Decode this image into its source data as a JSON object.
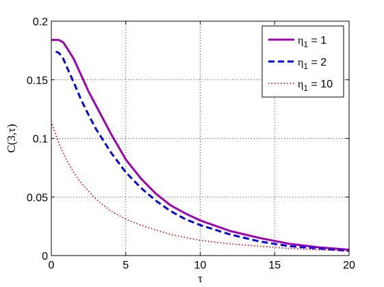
{
  "chart_data": {
    "type": "line",
    "title": "",
    "xlabel": "τ",
    "ylabel": "C(3,τ)",
    "xlim": [
      0,
      20
    ],
    "ylim": [
      0,
      0.2
    ],
    "xticks": [
      "0",
      "5",
      "10",
      "15",
      "20"
    ],
    "yticks": [
      "0",
      "0.05",
      "0.1",
      "0.15",
      "0.2"
    ],
    "grid": true,
    "legend_position": "top-right",
    "series": [
      {
        "name": "η1 = 1",
        "legend_symbol": "η",
        "legend_subscript": "1",
        "legend_value": "= 1",
        "color": "#a000b4",
        "style": "solid",
        "x": [
          0,
          0.5,
          0.8,
          1,
          1.5,
          2,
          2.5,
          3,
          4,
          5,
          6,
          7,
          8,
          9,
          10,
          12,
          14,
          16,
          18,
          20
        ],
        "values": [
          0.184,
          0.184,
          0.182,
          0.178,
          0.168,
          0.154,
          0.14,
          0.128,
          0.104,
          0.082,
          0.066,
          0.053,
          0.043,
          0.036,
          0.03,
          0.021,
          0.015,
          0.01,
          0.007,
          0.005
        ]
      },
      {
        "name": "η1 = 2",
        "legend_symbol": "η",
        "legend_subscript": "1",
        "legend_value": "= 2",
        "color": "#0000e0",
        "style": "dashed",
        "x": [
          0.3,
          0.5,
          0.8,
          1,
          1.5,
          2,
          2.5,
          3,
          4,
          5,
          6,
          7,
          8,
          9,
          10,
          12,
          14,
          16,
          18,
          20
        ],
        "values": [
          0.174,
          0.173,
          0.168,
          0.162,
          0.148,
          0.133,
          0.12,
          0.108,
          0.088,
          0.071,
          0.058,
          0.047,
          0.038,
          0.031,
          0.026,
          0.018,
          0.012,
          0.008,
          0.006,
          0.004
        ]
      },
      {
        "name": "η1 = 10",
        "legend_symbol": "η",
        "legend_subscript": "1",
        "legend_value": "= 10",
        "color": "#e00000",
        "style": "dotted",
        "x": [
          0.05,
          0.5,
          1,
          1.5,
          2,
          3,
          4,
          5,
          6,
          7,
          8,
          10,
          12,
          14,
          16,
          18,
          20
        ],
        "values": [
          0.112,
          0.096,
          0.082,
          0.071,
          0.062,
          0.048,
          0.038,
          0.031,
          0.026,
          0.022,
          0.018,
          0.013,
          0.01,
          0.008,
          0.006,
          0.005,
          0.004
        ]
      }
    ]
  }
}
